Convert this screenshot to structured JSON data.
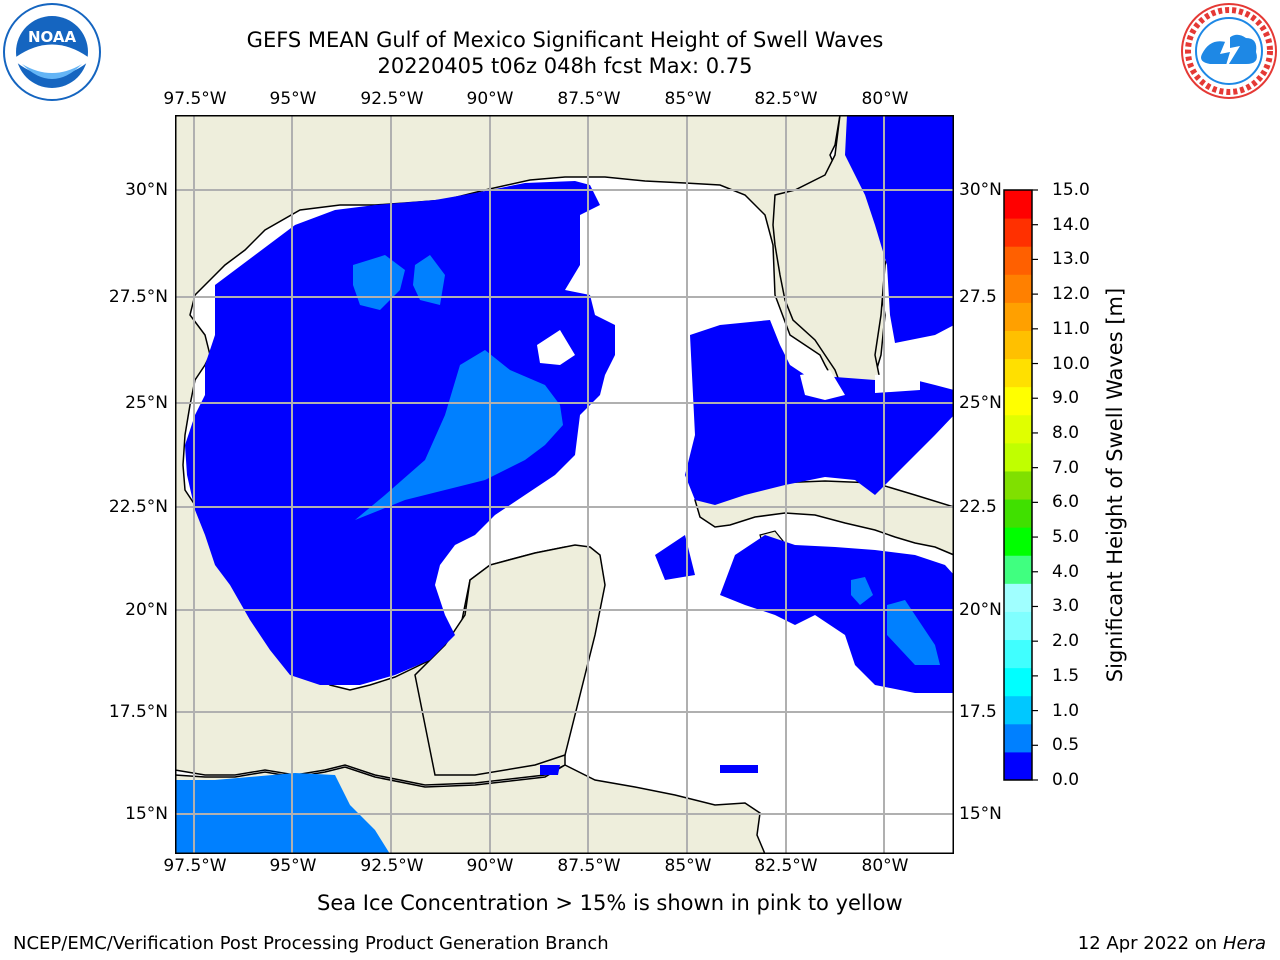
{
  "title_line1": "GEFS MEAN Gulf of Mexico Significant Height of Swell Waves",
  "title_line2": "20220405 t06z 048h fcst   Max: 0.75",
  "lon_ticks": [
    "97.5°W",
    "95°W",
    "92.5°W",
    "90°W",
    "87.5°W",
    "85°W",
    "82.5°W",
    "80°W"
  ],
  "lat_ticks_left": [
    "30°N",
    "27.5°N",
    "25°N",
    "22.5°N",
    "20°N",
    "17.5°N",
    "15°N"
  ],
  "lat_ticks_right": [
    "30°N",
    "27.5",
    "25°N",
    "22.5",
    "20°N",
    "17.5",
    "15°N"
  ],
  "colorbar": {
    "label": "Significant Height of Swell Waves [m]",
    "ticks": [
      "15.0",
      "14.0",
      "13.0",
      "12.0",
      "11.0",
      "10.0",
      "9.0",
      "8.0",
      "7.0",
      "6.0",
      "5.0",
      "4.0",
      "3.0",
      "2.0",
      "1.5",
      "1.0",
      "0.5",
      "0.0"
    ],
    "colors": [
      "#0000ff",
      "#0080ff",
      "#00c8ff",
      "#00ffff",
      "#40ffff",
      "#80ffff",
      "#a0ffff",
      "#40ff80",
      "#00ff00",
      "#40e000",
      "#80e000",
      "#c0ff00",
      "#e0ff00",
      "#ffff00",
      "#ffe000",
      "#ffc000",
      "#ffa000",
      "#ff8000",
      "#ff6000",
      "#ff3000",
      "#ff0000"
    ]
  },
  "ice_note": "Sea Ice Concentration > 15% is shown in pink to yellow",
  "footer_left": "NCEP/EMC/Verification Post Processing Product Generation Branch",
  "footer_right_date": "12 Apr 2022 on ",
  "footer_right_machine": "Hera",
  "colors": {
    "land": "#eeeedc",
    "swell_low": "#0000ff",
    "swell_mid": "#0080ff",
    "grid": "#b0b0b0",
    "noaa_blue": "#1565c0",
    "nws_red": "#e53935"
  },
  "logos": {
    "left": "noaa-logo",
    "right": "national-weather-service-logo"
  }
}
